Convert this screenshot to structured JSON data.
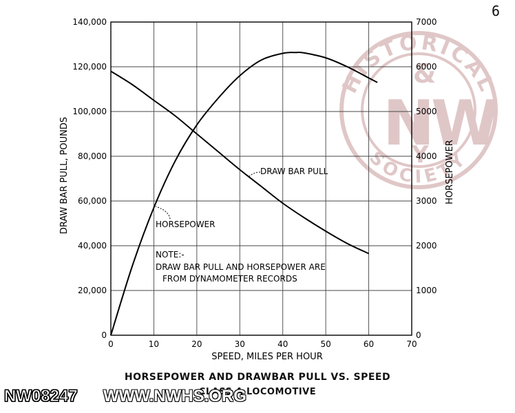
{
  "page_number": "6",
  "watermark": {
    "text_top": "HISTORICAL",
    "text_bottom": "SOCIETY",
    "letters": [
      "N",
      "&",
      "W",
      "R",
      "Y"
    ],
    "color": "#c79a9a"
  },
  "footer": {
    "id": "NW08247",
    "url": "WWW.NWHS.ORG"
  },
  "captions": {
    "title": "HORSEPOWER AND DRAWBAR PULL VS. SPEED",
    "subtitle": "CLASS A LOCOMOTIVE"
  },
  "chart_data": {
    "type": "line",
    "xlabel": "SPEED, MILES PER HOUR",
    "ylabel_left": "DRAW BAR PULL, POUNDS",
    "ylabel_right": "HORSEPOWER",
    "xlim": [
      0,
      70
    ],
    "ylim_left": [
      0,
      140000
    ],
    "ylim_right": [
      0,
      7000
    ],
    "x_ticks": [
      "0",
      "10",
      "20",
      "30",
      "40",
      "50",
      "60",
      "70"
    ],
    "y_ticks_left": [
      "0",
      "20,000",
      "40,000",
      "60,000",
      "80,000",
      "100,000",
      "120,000",
      "140,000"
    ],
    "y_ticks_right": [
      "0",
      "1000",
      "2000",
      "3000",
      "4000",
      "5000",
      "6000",
      "7000"
    ],
    "grid": true,
    "series": [
      {
        "name": "DRAW BAR PULL",
        "axis": "left",
        "x": [
          0,
          5,
          10,
          15,
          20,
          25,
          30,
          35,
          40,
          45,
          50,
          55,
          60
        ],
        "values": [
          118000,
          112000,
          105000,
          98000,
          90000,
          82000,
          74000,
          66500,
          59000,
          52500,
          46500,
          41000,
          36500
        ]
      },
      {
        "name": "HORSEPOWER",
        "axis": "right",
        "x": [
          0,
          5,
          10,
          15,
          20,
          25,
          30,
          35,
          40,
          43,
          45,
          50,
          55,
          60,
          62
        ],
        "values": [
          0,
          1550,
          2850,
          3900,
          4700,
          5300,
          5800,
          6150,
          6300,
          6320,
          6310,
          6200,
          6000,
          5750,
          5650
        ]
      }
    ],
    "annotations": [
      {
        "text": "DRAW BAR PULL",
        "target_series": "DRAW BAR PULL"
      },
      {
        "text": "HORSEPOWER",
        "target_series": "HORSEPOWER"
      },
      {
        "text": "NOTE:-"
      },
      {
        "text": "DRAW BAR PULL AND HORSEPOWER ARE"
      },
      {
        "text": "FROM DYNAMOMETER RECORDS"
      }
    ]
  }
}
